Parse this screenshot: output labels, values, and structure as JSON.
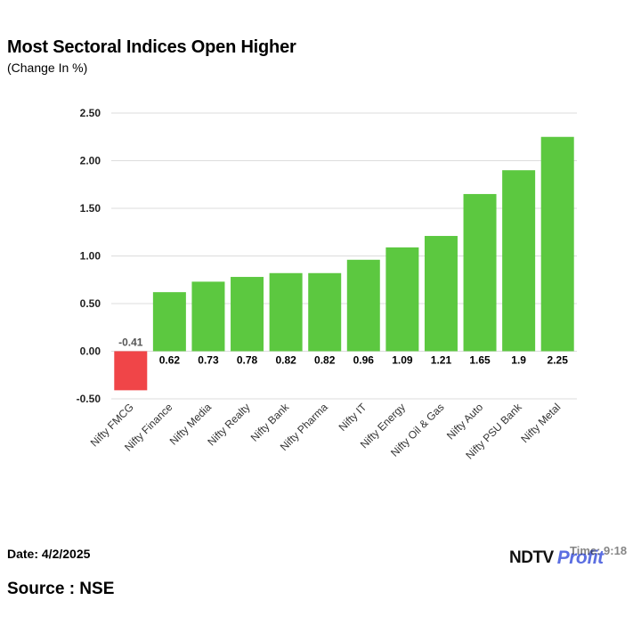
{
  "header": {
    "title": "Most Sectoral Indices Open Higher",
    "subtitle": "(Change In %)"
  },
  "footer": {
    "date": "Date: 4/2/2025",
    "source": "Source : NSE",
    "time_label": "Time: 9:18",
    "logo_ndtv": "NDTV",
    "logo_profit": "Profit"
  },
  "colors": {
    "positive": "#5cc840",
    "negative": "#f04548",
    "grid": "#dcdcdc"
  },
  "chart_data": {
    "type": "bar",
    "categories": [
      "Nifty FMCG",
      "Nifty Finance",
      "Nifty Media",
      "Nifty Realty",
      "Nifty Bank",
      "Nifty Pharma",
      "Nifty IT",
      "Nifty Energy",
      "Nifty Oil & Gas",
      "Nifty Auto",
      "Nifty PSU Bank",
      "Nifty Metal"
    ],
    "values": [
      -0.41,
      0.62,
      0.73,
      0.78,
      0.82,
      0.82,
      0.96,
      1.09,
      1.21,
      1.65,
      1.9,
      2.25
    ],
    "value_labels": [
      "-0.41",
      "0.62",
      "0.73",
      "0.78",
      "0.82",
      "0.82",
      "0.96",
      "1.09",
      "1.21",
      "1.65",
      "1.9",
      "2.25"
    ],
    "yticks": [
      "2.50",
      "2.00",
      "1.50",
      "1.00",
      "0.50",
      "0.00",
      "-0.50"
    ],
    "ylim": [
      -0.5,
      2.5
    ],
    "xlabel": "",
    "ylabel": "",
    "grid": true,
    "legend": "none"
  }
}
